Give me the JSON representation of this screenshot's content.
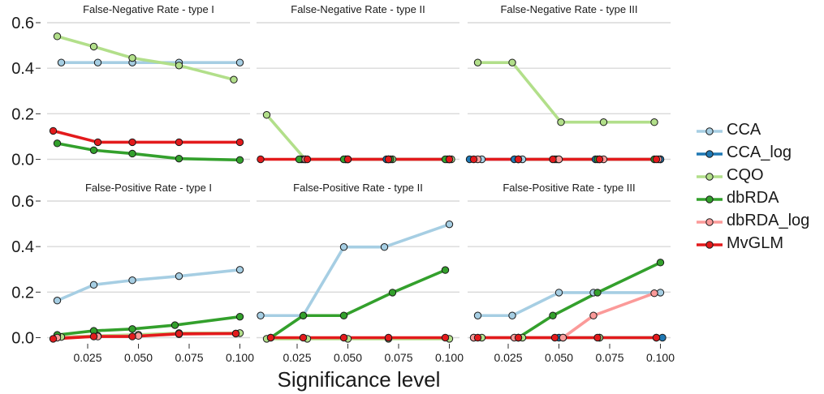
{
  "chart_data": {
    "type": "line",
    "xlabel": "Significance level",
    "ylabel": "",
    "xlim": [
      0.005,
      0.105
    ],
    "ylim": [
      0,
      0.6
    ],
    "x_ticks": [
      "0.025",
      "0.050",
      "0.075",
      "0.100"
    ],
    "y_ticks": [
      "0.0",
      "0.2",
      "0.4",
      "0.6"
    ],
    "grid": "horizontal",
    "legend_position": "right",
    "series_styles": [
      {
        "name": "CCA",
        "color": "#a6cee3"
      },
      {
        "name": "CCA_log",
        "color": "#1f78b4"
      },
      {
        "name": "CQO",
        "color": "#b2df8a"
      },
      {
        "name": "dbRDA",
        "color": "#33a02c"
      },
      {
        "name": "dbRDA_log",
        "color": "#fb9a99"
      },
      {
        "name": "MvGLM",
        "color": "#e31a1c"
      }
    ],
    "panels": [
      {
        "title": "False-Negative Rate - type I",
        "row": 0,
        "col": 0,
        "series": [
          {
            "name": "CCA",
            "points": [
              [
                0.012,
                0.425
              ],
              [
                0.03,
                0.425
              ],
              [
                0.047,
                0.425
              ],
              [
                0.07,
                0.425
              ],
              [
                0.1,
                0.425
              ]
            ]
          },
          {
            "name": "CQO",
            "points": [
              [
                0.01,
                0.54
              ],
              [
                0.028,
                0.495
              ],
              [
                0.047,
                0.445
              ],
              [
                0.07,
                0.412
              ],
              [
                0.097,
                0.35
              ]
            ]
          },
          {
            "name": "dbRDA",
            "points": [
              [
                0.01,
                0.07
              ],
              [
                0.028,
                0.04
              ],
              [
                0.047,
                0.025
              ],
              [
                0.07,
                0.003
              ],
              [
                0.1,
                -0.003
              ]
            ]
          },
          {
            "name": "MvGLM",
            "points": [
              [
                0.008,
                0.125
              ],
              [
                0.03,
                0.075
              ],
              [
                0.047,
                0.075
              ],
              [
                0.07,
                0.075
              ],
              [
                0.1,
                0.075
              ]
            ]
          }
        ]
      },
      {
        "title": "False-Negative Rate - type II",
        "row": 0,
        "col": 1,
        "series": [
          {
            "name": "CCA",
            "points": [
              [
                0.027,
                0
              ],
              [
                0.05,
                0
              ],
              [
                0.07,
                0
              ],
              [
                0.1,
                0
              ]
            ]
          },
          {
            "name": "CCA_log",
            "points": [
              [
                0.028,
                0
              ],
              [
                0.049,
                0
              ],
              [
                0.069,
                0
              ],
              [
                0.099,
                0
              ]
            ]
          },
          {
            "name": "CQO",
            "points": [
              [
                0.01,
                0.195
              ],
              [
                0.029,
                0
              ],
              [
                0.049,
                0
              ],
              [
                0.072,
                0
              ],
              [
                0.101,
                0
              ]
            ]
          },
          {
            "name": "dbRDA",
            "points": [
              [
                0.026,
                0
              ],
              [
                0.048,
                0
              ],
              [
                0.071,
                0
              ],
              [
                0.098,
                0
              ]
            ]
          },
          {
            "name": "dbRDA_log",
            "points": [
              [
                0.029,
                0
              ],
              [
                0.05,
                0
              ],
              [
                0.07,
                0
              ],
              [
                0.1,
                0
              ]
            ]
          },
          {
            "name": "MvGLM",
            "points": [
              [
                0.007,
                0
              ],
              [
                0.03,
                0
              ],
              [
                0.05,
                0
              ],
              [
                0.07,
                0
              ],
              [
                0.1,
                0
              ]
            ]
          }
        ]
      },
      {
        "title": "False-Negative Rate - type III",
        "row": 0,
        "col": 2,
        "series": [
          {
            "name": "CCA",
            "points": [
              [
                0.012,
                0
              ],
              [
                0.032,
                0
              ],
              [
                0.05,
                0
              ],
              [
                0.07,
                0
              ],
              [
                0.1,
                0
              ]
            ]
          },
          {
            "name": "CCA_log",
            "points": [
              [
                0.006,
                0
              ],
              [
                0.028,
                0
              ],
              [
                0.048,
                0
              ],
              [
                0.068,
                0
              ],
              [
                0.1,
                0
              ]
            ]
          },
          {
            "name": "CQO",
            "points": [
              [
                0.01,
                0.425
              ],
              [
                0.027,
                0.425
              ],
              [
                0.051,
                0.163
              ],
              [
                0.072,
                0.163
              ],
              [
                0.097,
                0.163
              ]
            ]
          },
          {
            "name": "dbRDA",
            "points": [
              [
                0.03,
                0
              ],
              [
                0.049,
                0
              ],
              [
                0.069,
                0
              ],
              [
                0.097,
                0
              ]
            ]
          },
          {
            "name": "dbRDA_log",
            "points": [
              [
                0.01,
                0
              ],
              [
                0.03,
                0
              ],
              [
                0.05,
                0
              ],
              [
                0.072,
                0
              ],
              [
                0.099,
                0
              ]
            ]
          },
          {
            "name": "MvGLM",
            "points": [
              [
                0.008,
                0
              ],
              [
                0.03,
                0
              ],
              [
                0.047,
                0
              ],
              [
                0.07,
                0
              ],
              [
                0.098,
                0
              ]
            ]
          }
        ]
      },
      {
        "title": "False-Positive Rate - type I",
        "row": 1,
        "col": 0,
        "series": [
          {
            "name": "CCA",
            "points": [
              [
                0.01,
                0.163
              ],
              [
                0.028,
                0.232
              ],
              [
                0.047,
                0.252
              ],
              [
                0.07,
                0.27
              ],
              [
                0.1,
                0.298
              ]
            ]
          },
          {
            "name": "CQO",
            "points": [
              [
                0.012,
                0.003
              ],
              [
                0.03,
                0.008
              ],
              [
                0.05,
                0.013
              ],
              [
                0.07,
                0.02
              ],
              [
                0.1,
                0.02
              ]
            ]
          },
          {
            "name": "dbRDA",
            "points": [
              [
                0.01,
                0.012
              ],
              [
                0.028,
                0.03
              ],
              [
                0.047,
                0.038
              ],
              [
                0.068,
                0.055
              ],
              [
                0.1,
                0.092
              ]
            ]
          },
          {
            "name": "dbRDA_log",
            "points": [
              [
                0.01,
                0
              ],
              [
                0.03,
                0.005
              ],
              [
                0.05,
                0.008
              ],
              [
                0.07,
                0.015
              ],
              [
                0.098,
                0.018
              ]
            ]
          },
          {
            "name": "MvGLM",
            "points": [
              [
                0.008,
                -0.005
              ],
              [
                0.028,
                0.005
              ],
              [
                0.047,
                0.005
              ],
              [
                0.07,
                0.017
              ],
              [
                0.098,
                0.018
              ]
            ]
          }
        ]
      },
      {
        "title": "False-Positive Rate - type II",
        "row": 1,
        "col": 1,
        "series": [
          {
            "name": "CCA",
            "points": [
              [
                0.007,
                0.097
              ],
              [
                0.028,
                0.097
              ],
              [
                0.048,
                0.398
              ],
              [
                0.068,
                0.398
              ],
              [
                0.1,
                0.498
              ]
            ]
          },
          {
            "name": "CQO",
            "points": [
              [
                0.01,
                -0.005
              ],
              [
                0.03,
                -0.005
              ],
              [
                0.05,
                -0.005
              ],
              [
                0.07,
                -0.005
              ],
              [
                0.1,
                -0.005
              ]
            ]
          },
          {
            "name": "dbRDA",
            "points": [
              [
                0.012,
                0
              ],
              [
                0.028,
                0.097
              ],
              [
                0.048,
                0.097
              ],
              [
                0.072,
                0.198
              ],
              [
                0.098,
                0.297
              ]
            ]
          },
          {
            "name": "MvGLM",
            "points": [
              [
                0.012,
                0
              ],
              [
                0.028,
                0
              ],
              [
                0.048,
                0
              ],
              [
                0.07,
                0
              ],
              [
                0.098,
                0
              ]
            ]
          }
        ]
      },
      {
        "title": "False-Positive Rate - type III",
        "row": 1,
        "col": 2,
        "series": [
          {
            "name": "CCA",
            "points": [
              [
                0.01,
                0.097
              ],
              [
                0.027,
                0.097
              ],
              [
                0.05,
                0.198
              ],
              [
                0.067,
                0.198
              ],
              [
                0.1,
                0.198
              ]
            ]
          },
          {
            "name": "CCA_log",
            "points": [
              [
                0.008,
                0
              ],
              [
                0.03,
                0
              ],
              [
                0.05,
                0
              ],
              [
                0.07,
                0
              ],
              [
                0.101,
                0
              ]
            ]
          },
          {
            "name": "CQO",
            "points": [
              [
                0.012,
                0
              ],
              [
                0.032,
                0
              ],
              [
                0.052,
                0
              ],
              [
                0.07,
                0
              ],
              [
                0.098,
                0
              ]
            ]
          },
          {
            "name": "dbRDA",
            "points": [
              [
                0.03,
                0
              ],
              [
                0.047,
                0.097
              ],
              [
                0.069,
                0.198
              ],
              [
                0.1,
                0.33
              ]
            ]
          },
          {
            "name": "dbRDA_log",
            "points": [
              [
                0.008,
                0
              ],
              [
                0.028,
                0
              ],
              [
                0.052,
                0
              ],
              [
                0.067,
                0.097
              ],
              [
                0.097,
                0.195
              ]
            ]
          },
          {
            "name": "MvGLM",
            "points": [
              [
                0.01,
                0
              ],
              [
                0.03,
                0
              ],
              [
                0.048,
                0
              ],
              [
                0.069,
                0
              ],
              [
                0.098,
                0
              ]
            ]
          }
        ]
      }
    ]
  }
}
